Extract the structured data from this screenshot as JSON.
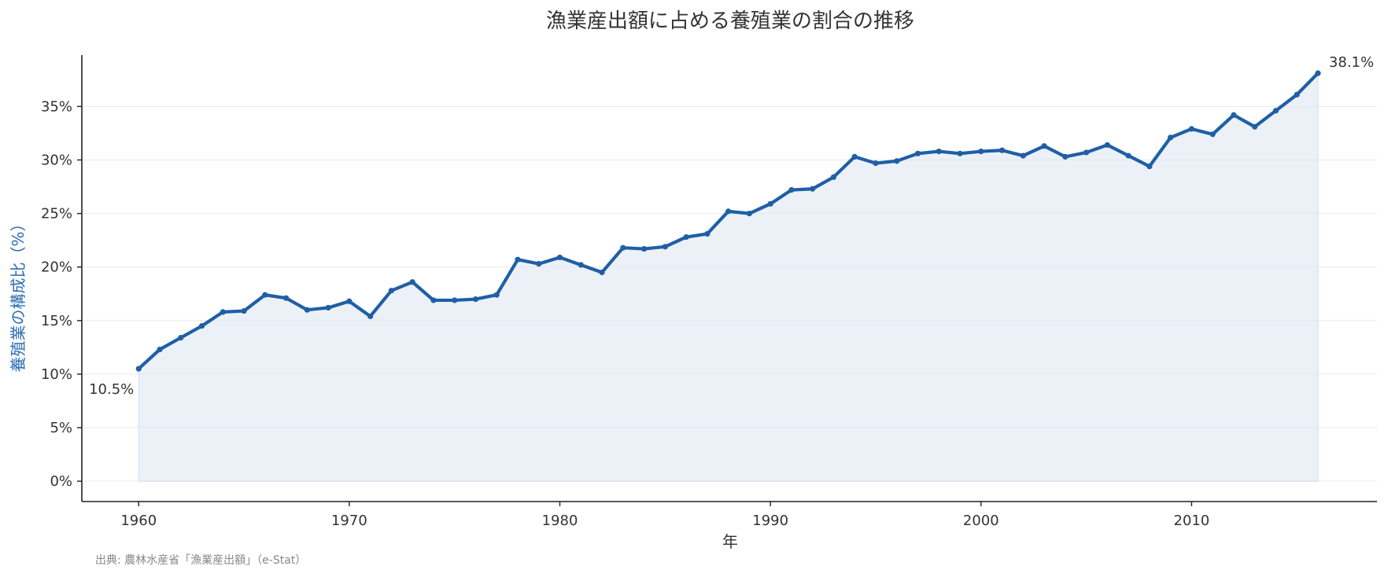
{
  "chart_data": {
    "type": "area",
    "title": "漁業産出額に占める養殖業の割合の推移",
    "xlabel": "年",
    "ylabel": "養殖業の構成比（%）",
    "source": "出典: 農林水産省「漁業産出額」（e-Stat）",
    "x": [
      1960,
      1961,
      1962,
      1963,
      1964,
      1965,
      1966,
      1967,
      1968,
      1969,
      1970,
      1971,
      1972,
      1973,
      1974,
      1975,
      1976,
      1977,
      1978,
      1979,
      1980,
      1981,
      1982,
      1983,
      1984,
      1985,
      1986,
      1987,
      1988,
      1989,
      1990,
      1991,
      1992,
      1993,
      1994,
      1995,
      1996,
      1997,
      1998,
      1999,
      2000,
      2001,
      2002,
      2003,
      2004,
      2005,
      2006,
      2007,
      2008,
      2009,
      2010,
      2011,
      2012,
      2013,
      2014,
      2015,
      2016
    ],
    "series": [
      {
        "values": [
          10.5,
          12.3,
          13.4,
          14.5,
          15.8,
          15.9,
          17.4,
          17.1,
          16.0,
          16.2,
          16.8,
          15.4,
          17.8,
          18.6,
          16.9,
          16.9,
          17.0,
          17.4,
          20.7,
          20.3,
          20.9,
          20.2,
          19.5,
          21.8,
          21.7,
          21.9,
          22.8,
          23.1,
          25.2,
          25.0,
          25.9,
          27.2,
          27.3,
          28.4,
          30.3,
          29.7,
          29.9,
          30.6,
          30.8,
          30.6,
          30.8,
          30.9,
          30.4,
          31.3,
          30.3,
          30.7,
          31.4,
          30.4,
          29.4,
          32.1,
          32.9,
          32.4,
          34.2,
          33.1,
          34.6,
          36.1,
          38.1
        ]
      }
    ],
    "annotations": {
      "first": "10.5%",
      "last": "38.1%"
    },
    "xticks": [
      1960,
      1970,
      1980,
      1990,
      2000,
      2010
    ],
    "xtick_labels": [
      "1960",
      "1970",
      "1980",
      "1990",
      "2000",
      "2010"
    ],
    "yticks": [
      0,
      5,
      10,
      15,
      20,
      25,
      30,
      35
    ],
    "ytick_labels": [
      "0%",
      "5%",
      "10%",
      "15%",
      "20%",
      "25%",
      "30%",
      "35%"
    ],
    "xlim": [
      1957.3,
      2018.8
    ],
    "ylim": [
      -1.9,
      39.8
    ],
    "grid": "horizontal",
    "legend": "none",
    "colors": {
      "line": "#1f5fa6",
      "fill": "#dfe8f4",
      "ylabel": "#2d6db5",
      "first_label": "#5b90c0",
      "last_label": "#2d6db5"
    }
  }
}
